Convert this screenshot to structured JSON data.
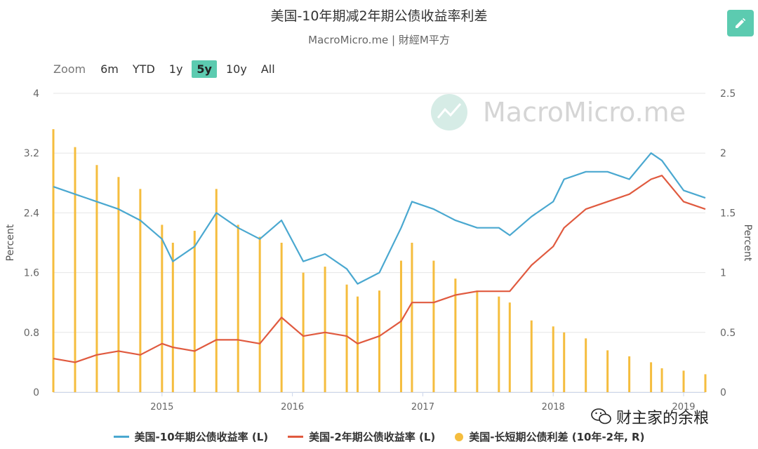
{
  "header": {
    "title": "美国-10年期减2年期公债收益率利差",
    "subtitle": "MacroMicro.me | 財經M平方"
  },
  "toolbar": {
    "zoom_label": "Zoom",
    "ranges": [
      "6m",
      "YTD",
      "1y",
      "5y",
      "10y",
      "All"
    ],
    "active_range": "5y",
    "edit_icon": "pencil-icon"
  },
  "watermark": {
    "brand": "MacroMicro.me",
    "social": "财主家的余粮",
    "social_icon": "wechat-icon"
  },
  "colors": {
    "y10": "#4aa8d0",
    "y2": "#e05a3f",
    "spread": "#f5bd3e",
    "grid": "#e6e6e6",
    "accent": "#5ccbb0"
  },
  "chart_data": {
    "type": "line",
    "xlabel": "",
    "x_ticks": [
      "2015",
      "2016",
      "2017",
      "2018",
      "2019"
    ],
    "xlim": [
      "2014-03",
      "2019-03"
    ],
    "y_left": {
      "label": "Percent",
      "ticks": [
        "0",
        "0.8",
        "1.6",
        "2.4",
        "3.2",
        "4"
      ],
      "lim": [
        0,
        4
      ]
    },
    "y_right": {
      "label": "Percent",
      "ticks": [
        "0",
        "0.5",
        "1",
        "1.5",
        "2",
        "2.5"
      ],
      "lim": [
        0,
        2.5
      ]
    },
    "grid": true,
    "legend_position": "bottom",
    "series": [
      {
        "name": "美国-10年期公债收益率 (L)",
        "type": "line",
        "axis": "left",
        "x": [
          "2014-03",
          "2014-05",
          "2014-07",
          "2014-09",
          "2014-11",
          "2015-01",
          "2015-02",
          "2015-04",
          "2015-06",
          "2015-08",
          "2015-10",
          "2015-12",
          "2016-02",
          "2016-04",
          "2016-06",
          "2016-07",
          "2016-09",
          "2016-11",
          "2016-12",
          "2017-02",
          "2017-04",
          "2017-06",
          "2017-08",
          "2017-09",
          "2017-11",
          "2018-01",
          "2018-02",
          "2018-04",
          "2018-06",
          "2018-08",
          "2018-10",
          "2018-11",
          "2019-01",
          "2019-03"
        ],
        "y": [
          2.75,
          2.65,
          2.55,
          2.45,
          2.3,
          2.05,
          1.75,
          1.95,
          2.4,
          2.2,
          2.05,
          2.3,
          1.75,
          1.85,
          1.65,
          1.45,
          1.6,
          2.2,
          2.55,
          2.45,
          2.3,
          2.2,
          2.2,
          2.1,
          2.35,
          2.55,
          2.85,
          2.95,
          2.95,
          2.85,
          3.2,
          3.1,
          2.7,
          2.6
        ]
      },
      {
        "name": "美国-2年期公债收益率 (L)",
        "type": "line",
        "axis": "left",
        "x": [
          "2014-03",
          "2014-05",
          "2014-07",
          "2014-09",
          "2014-11",
          "2015-01",
          "2015-02",
          "2015-04",
          "2015-06",
          "2015-08",
          "2015-10",
          "2015-12",
          "2016-02",
          "2016-04",
          "2016-06",
          "2016-07",
          "2016-09",
          "2016-11",
          "2016-12",
          "2017-02",
          "2017-04",
          "2017-06",
          "2017-08",
          "2017-09",
          "2017-11",
          "2018-01",
          "2018-02",
          "2018-04",
          "2018-06",
          "2018-08",
          "2018-10",
          "2018-11",
          "2019-01",
          "2019-03"
        ],
        "y": [
          0.45,
          0.4,
          0.5,
          0.55,
          0.5,
          0.65,
          0.6,
          0.55,
          0.7,
          0.7,
          0.65,
          1.0,
          0.75,
          0.8,
          0.75,
          0.65,
          0.75,
          0.95,
          1.2,
          1.2,
          1.3,
          1.35,
          1.35,
          1.35,
          1.7,
          1.95,
          2.2,
          2.45,
          2.55,
          2.65,
          2.85,
          2.9,
          2.55,
          2.45
        ]
      },
      {
        "name": "美国-长短期公债利差 (10年-2年, R)",
        "type": "bar",
        "axis": "right",
        "x": [
          "2014-03",
          "2014-05",
          "2014-07",
          "2014-09",
          "2014-11",
          "2015-01",
          "2015-02",
          "2015-04",
          "2015-06",
          "2015-08",
          "2015-10",
          "2015-12",
          "2016-02",
          "2016-04",
          "2016-06",
          "2016-07",
          "2016-09",
          "2016-11",
          "2016-12",
          "2017-02",
          "2017-04",
          "2017-06",
          "2017-08",
          "2017-09",
          "2017-11",
          "2018-01",
          "2018-02",
          "2018-04",
          "2018-06",
          "2018-08",
          "2018-10",
          "2018-11",
          "2019-01",
          "2019-03"
        ],
        "y": [
          2.2,
          2.05,
          1.9,
          1.8,
          1.7,
          1.4,
          1.25,
          1.35,
          1.7,
          1.4,
          1.3,
          1.25,
          1.0,
          1.05,
          0.9,
          0.8,
          0.85,
          1.1,
          1.25,
          1.1,
          0.95,
          0.85,
          0.8,
          0.75,
          0.6,
          0.55,
          0.5,
          0.45,
          0.35,
          0.3,
          0.25,
          0.2,
          0.18,
          0.15
        ]
      }
    ]
  },
  "legend": [
    {
      "label": "美国-10年期公债收益率 (L)",
      "marker": "line",
      "color": "#4aa8d0"
    },
    {
      "label": "美国-2年期公债收益率 (L)",
      "marker": "line",
      "color": "#e05a3f"
    },
    {
      "label": "美国-长短期公债利差 (10年-2年, R)",
      "marker": "dot",
      "color": "#f5bd3e"
    }
  ]
}
